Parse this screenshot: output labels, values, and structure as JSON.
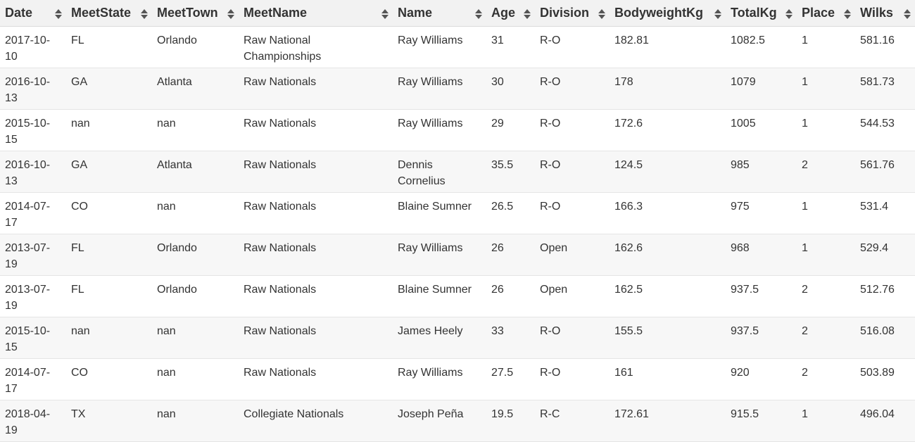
{
  "table": {
    "columns": [
      "Date",
      "MeetState",
      "MeetTown",
      "MeetName",
      "Name",
      "Age",
      "Division",
      "BodyweightKg",
      "TotalKg",
      "Place",
      "Wilks"
    ],
    "rows": [
      [
        "2017-10-10",
        "FL",
        "Orlando",
        "Raw National Championships",
        "Ray Williams",
        "31",
        "R-O",
        "182.81",
        "1082.5",
        "1",
        "581.16"
      ],
      [
        "2016-10-13",
        "GA",
        "Atlanta",
        "Raw Nationals",
        "Ray Williams",
        "30",
        "R-O",
        "178",
        "1079",
        "1",
        "581.73"
      ],
      [
        "2015-10-15",
        "nan",
        "nan",
        "Raw Nationals",
        "Ray Williams",
        "29",
        "R-O",
        "172.6",
        "1005",
        "1",
        "544.53"
      ],
      [
        "2016-10-13",
        "GA",
        "Atlanta",
        "Raw Nationals",
        "Dennis Cornelius",
        "35.5",
        "R-O",
        "124.5",
        "985",
        "2",
        "561.76"
      ],
      [
        "2014-07-17",
        "CO",
        "nan",
        "Raw Nationals",
        "Blaine Sumner",
        "26.5",
        "R-O",
        "166.3",
        "975",
        "1",
        "531.4"
      ],
      [
        "2013-07-19",
        "FL",
        "Orlando",
        "Raw Nationals",
        "Ray Williams",
        "26",
        "Open",
        "162.6",
        "968",
        "1",
        "529.4"
      ],
      [
        "2013-07-19",
        "FL",
        "Orlando",
        "Raw Nationals",
        "Blaine Sumner",
        "26",
        "Open",
        "162.5",
        "937.5",
        "2",
        "512.76"
      ],
      [
        "2015-10-15",
        "nan",
        "nan",
        "Raw Nationals",
        "James Heely",
        "33",
        "R-O",
        "155.5",
        "937.5",
        "2",
        "516.08"
      ],
      [
        "2014-07-17",
        "CO",
        "nan",
        "Raw Nationals",
        "Ray Williams",
        "27.5",
        "R-O",
        "161",
        "920",
        "2",
        "503.89"
      ],
      [
        "2018-04-19",
        "TX",
        "nan",
        "Collegiate Nationals",
        "Joseph Peña",
        "19.5",
        "R-C",
        "172.61",
        "915.5",
        "1",
        "496.04"
      ]
    ]
  },
  "icons": {
    "sort": "sort-both-icon"
  },
  "colors": {
    "header_bg": "#f2f2f2",
    "row_alt_bg": "#f7f7f7",
    "text": "#333333",
    "sort_icon": "#555555"
  }
}
